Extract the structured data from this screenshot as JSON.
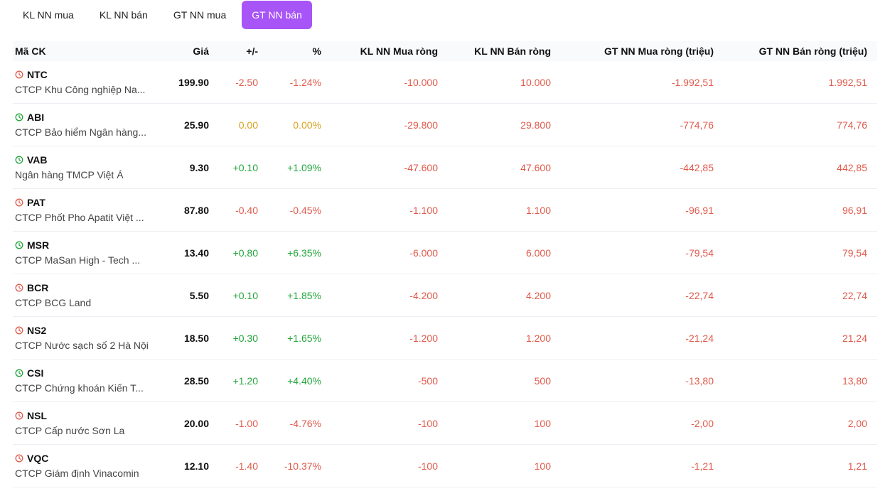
{
  "tabs": [
    {
      "label": "KL NN mua",
      "active": false
    },
    {
      "label": "KL NN bán",
      "active": false
    },
    {
      "label": "GT NN mua",
      "active": false
    },
    {
      "label": "GT NN bán",
      "active": true
    }
  ],
  "headers": {
    "symbol": "Mã CK",
    "price": "Giá",
    "change": "+/-",
    "pct": "%",
    "kl_mua": "KL NN Mua ròng",
    "kl_ban": "KL NN Bán ròng",
    "gt_mua": "GT NN Mua ròng (triệu)",
    "gt_ban": "GT NN Bán ròng (triệu)"
  },
  "colors": {
    "accent": "#a855f7",
    "up": "#22a63b",
    "down": "#e05a4b",
    "ref": "#d6a31d"
  },
  "rows": [
    {
      "symbol": "NTC",
      "name": "CTCP Khu Công nghiệp Na...",
      "price": "199.90",
      "change": "-2.50",
      "pct": "-1.24%",
      "kl_mua": "-10.000",
      "kl_ban": "10.000",
      "gt_mua": "-1.992,51",
      "gt_ban": "1.992,51",
      "trend": "down",
      "icon": "red-clock-icon"
    },
    {
      "symbol": "ABI",
      "name": "CTCP Bảo hiểm Ngân hàng...",
      "price": "25.90",
      "change": "0.00",
      "pct": "0.00%",
      "kl_mua": "-29.800",
      "kl_ban": "29.800",
      "gt_mua": "-774,76",
      "gt_ban": "774,76",
      "trend": "ref",
      "icon": "green-clock-icon"
    },
    {
      "symbol": "VAB",
      "name": "Ngân hàng TMCP Việt Á",
      "price": "9.30",
      "change": "+0.10",
      "pct": "+1.09%",
      "kl_mua": "-47.600",
      "kl_ban": "47.600",
      "gt_mua": "-442,85",
      "gt_ban": "442,85",
      "trend": "up",
      "icon": "green-clock-icon"
    },
    {
      "symbol": "PAT",
      "name": "CTCP Phốt Pho Apatit Việt ...",
      "price": "87.80",
      "change": "-0.40",
      "pct": "-0.45%",
      "kl_mua": "-1.100",
      "kl_ban": "1.100",
      "gt_mua": "-96,91",
      "gt_ban": "96,91",
      "trend": "down",
      "icon": "red-clock-icon"
    },
    {
      "symbol": "MSR",
      "name": "CTCP MaSan High - Tech ...",
      "price": "13.40",
      "change": "+0.80",
      "pct": "+6.35%",
      "kl_mua": "-6.000",
      "kl_ban": "6.000",
      "gt_mua": "-79,54",
      "gt_ban": "79,54",
      "trend": "up",
      "icon": "green-clock-icon"
    },
    {
      "symbol": "BCR",
      "name": "CTCP BCG Land",
      "price": "5.50",
      "change": "+0.10",
      "pct": "+1.85%",
      "kl_mua": "-4.200",
      "kl_ban": "4.200",
      "gt_mua": "-22,74",
      "gt_ban": "22,74",
      "trend": "up",
      "icon": "red-clock-icon"
    },
    {
      "symbol": "NS2",
      "name": "CTCP Nước sạch số 2 Hà Nội",
      "price": "18.50",
      "change": "+0.30",
      "pct": "+1.65%",
      "kl_mua": "-1.200",
      "kl_ban": "1.200",
      "gt_mua": "-21,24",
      "gt_ban": "21,24",
      "trend": "up",
      "icon": "red-clock-icon"
    },
    {
      "symbol": "CSI",
      "name": "CTCP Chứng khoán Kiến T...",
      "price": "28.50",
      "change": "+1.20",
      "pct": "+4.40%",
      "kl_mua": "-500",
      "kl_ban": "500",
      "gt_mua": "-13,80",
      "gt_ban": "13,80",
      "trend": "up",
      "icon": "green-clock-icon"
    },
    {
      "symbol": "NSL",
      "name": "CTCP Cấp nước Sơn La",
      "price": "20.00",
      "change": "-1.00",
      "pct": "-4.76%",
      "kl_mua": "-100",
      "kl_ban": "100",
      "gt_mua": "-2,00",
      "gt_ban": "2,00",
      "trend": "down",
      "icon": "red-clock-icon"
    },
    {
      "symbol": "VQC",
      "name": "CTCP Giám định Vinacomin",
      "price": "12.10",
      "change": "-1.40",
      "pct": "-10.37%",
      "kl_mua": "-100",
      "kl_ban": "100",
      "gt_mua": "-1,21",
      "gt_ban": "1,21",
      "trend": "down",
      "icon": "red-clock-icon"
    }
  ]
}
